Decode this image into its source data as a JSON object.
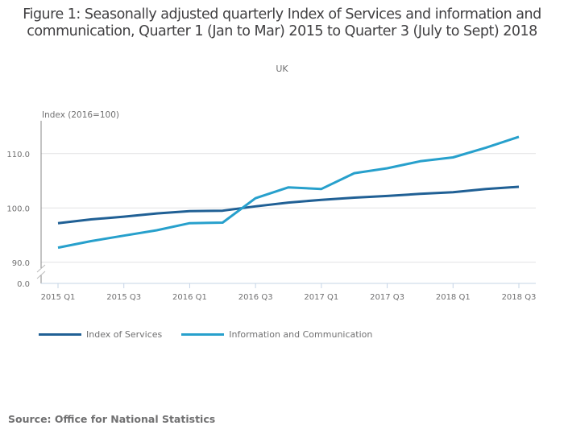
{
  "header": {
    "title": "Figure 1: Seasonally adjusted quarterly Index of Services and information and communication, Quarter 1 (Jan to Mar) 2015 to Quarter 3 (July to Sept) 2018",
    "subtitle": "UK"
  },
  "footer": {
    "source": "Source: Office for National Statistics"
  },
  "chart_data": {
    "type": "line",
    "title": "Figure 1: Seasonally adjusted quarterly Index of Services and information and communication, Quarter 1 (Jan to Mar) 2015 to Quarter 3 (July to Sept) 2018",
    "subtitle": "UK",
    "xlabel": "",
    "ylabel": "Index (2016=100)",
    "ylim": [
      88,
      116
    ],
    "y_axis_broken": true,
    "y_ticks": [
      {
        "value": 0,
        "label": "0.0"
      },
      {
        "value": 90,
        "label": "90.0"
      },
      {
        "value": 100,
        "label": "100.0"
      },
      {
        "value": 110,
        "label": "110.0"
      }
    ],
    "x": [
      "2015 Q1",
      "2015 Q2",
      "2015 Q3",
      "2015 Q4",
      "2016 Q1",
      "2016 Q2",
      "2016 Q3",
      "2016 Q4",
      "2017 Q1",
      "2017 Q2",
      "2017 Q3",
      "2017 Q4",
      "2018 Q1",
      "2018 Q2",
      "2018 Q3"
    ],
    "x_tick_labels": [
      "2015 Q1",
      "2015 Q3",
      "2016 Q1",
      "2016 Q3",
      "2017 Q1",
      "2017 Q3",
      "2018 Q1",
      "2018 Q3"
    ],
    "grid": true,
    "legend_position": "bottom-left",
    "series": [
      {
        "name": "Index of Services",
        "color": "#206095",
        "values": [
          97.2,
          97.9,
          98.4,
          99.0,
          99.4,
          99.5,
          100.3,
          101.0,
          101.5,
          101.9,
          102.2,
          102.6,
          102.9,
          103.5,
          103.9
        ]
      },
      {
        "name": "Information and Communication",
        "color": "#27a0cc",
        "values": [
          92.7,
          93.9,
          94.9,
          95.9,
          97.2,
          97.3,
          101.8,
          103.8,
          103.5,
          106.4,
          107.3,
          108.6,
          109.3,
          111.1,
          113.1
        ]
      }
    ]
  }
}
